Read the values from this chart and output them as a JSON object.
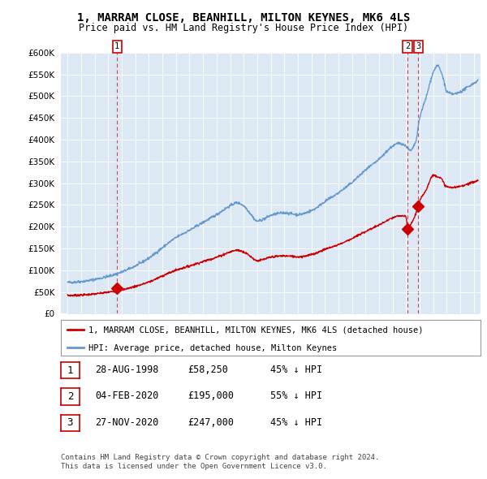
{
  "title": "1, MARRAM CLOSE, BEANHILL, MILTON KEYNES, MK6 4LS",
  "subtitle": "Price paid vs. HM Land Registry's House Price Index (HPI)",
  "legend_red": "1, MARRAM CLOSE, BEANHILL, MILTON KEYNES, MK6 4LS (detached house)",
  "legend_blue": "HPI: Average price, detached house, Milton Keynes",
  "footer1": "Contains HM Land Registry data © Crown copyright and database right 2024.",
  "footer2": "This data is licensed under the Open Government Licence v3.0.",
  "transactions": [
    {
      "num": 1,
      "date": "28-AUG-1998",
      "price": "£58,250",
      "hpi": "45% ↓ HPI",
      "year": 1998.65,
      "price_val": 58250
    },
    {
      "num": 2,
      "date": "04-FEB-2020",
      "price": "£195,000",
      "hpi": "55% ↓ HPI",
      "year": 2020.09,
      "price_val": 195000
    },
    {
      "num": 3,
      "date": "27-NOV-2020",
      "price": "£247,000",
      "hpi": "45% ↓ HPI",
      "year": 2020.9,
      "price_val": 247000
    }
  ],
  "ylim": [
    0,
    600000
  ],
  "yticks": [
    0,
    50000,
    100000,
    150000,
    200000,
    250000,
    300000,
    350000,
    400000,
    450000,
    500000,
    550000,
    600000
  ],
  "xlim_left": 1995.0,
  "xlim_right": 2025.5,
  "bg_color": "#ffffff",
  "plot_bg_color": "#dce9f5",
  "grid_color": "#ffffff",
  "red_color": "#cc0000",
  "blue_color": "#6699cc",
  "vline_color": "#cc0000",
  "title_fontsize": 10,
  "subtitle_fontsize": 8.5
}
